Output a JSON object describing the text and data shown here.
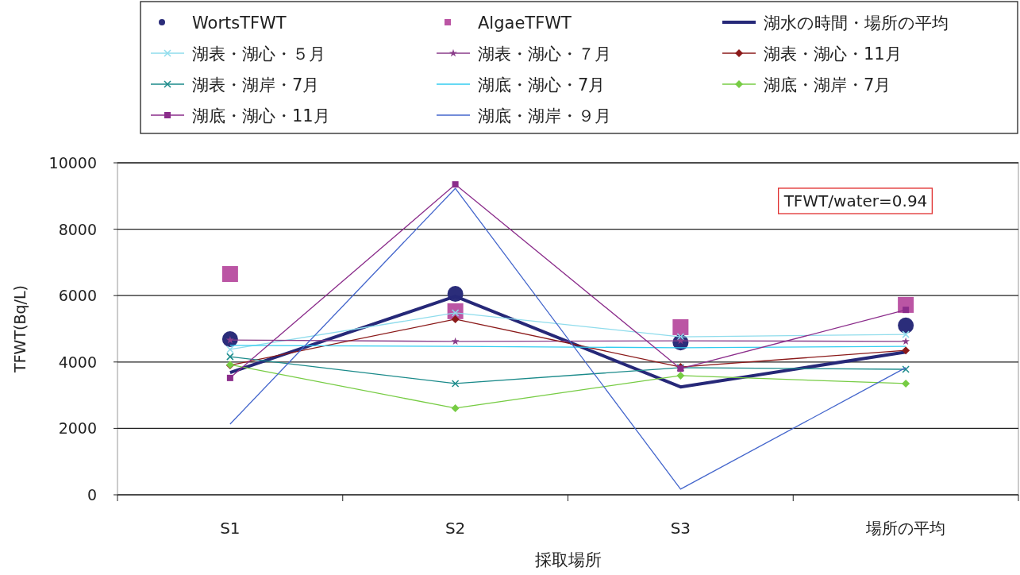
{
  "chart_data": {
    "type": "line",
    "xlabel": "採取場所",
    "ylabel": "TFWT(Bq/L)",
    "categories": [
      "S1",
      "S2",
      "S3",
      "場所の平均"
    ],
    "ylim": [
      0,
      10000
    ],
    "yticks": [
      0,
      2000,
      4000,
      6000,
      8000,
      10000
    ],
    "grid": "y",
    "legend": "top",
    "annotations": [
      "TFWT/water=0.94"
    ],
    "series": [
      {
        "name": "WortsTFWT",
        "type": "scatter",
        "marker": "circle",
        "color": "#2b2d7a",
        "values": [
          4690,
          6050,
          4590,
          5100
        ]
      },
      {
        "name": "AlgaeTFWT",
        "type": "scatter",
        "marker": "square",
        "color": "#bb55a4",
        "values": [
          6650,
          5530,
          5050,
          5720
        ]
      },
      {
        "name": "湖水の時間・場所の平均",
        "marker": "none",
        "color": "#262878",
        "values": [
          3680,
          5980,
          3250,
          4300
        ]
      },
      {
        "name": "湖表・湖心・５月",
        "marker": "cross",
        "color": "#8fdcec",
        "values": [
          4380,
          5480,
          4760,
          4830
        ]
      },
      {
        "name": "湖表・湖心・７月",
        "marker": "star",
        "color": "#8a3d8a",
        "values": [
          4660,
          4620,
          4640,
          4620
        ]
      },
      {
        "name": "湖表・湖心・11月",
        "marker": "diamond",
        "color": "#8b1a1a",
        "values": [
          3900,
          5290,
          3850,
          4350
        ]
      },
      {
        "name": "湖表・湖岸・7月",
        "marker": "cross",
        "color": "#1a8a8a",
        "values": [
          4160,
          3350,
          3830,
          3780
        ]
      },
      {
        "name": "湖底・湖心・7月",
        "marker": "none",
        "color": "#33ccf0",
        "values": [
          4500,
          4470,
          4430,
          4470
        ]
      },
      {
        "name": "湖底・湖岸・7月",
        "marker": "diamond",
        "color": "#77cc44",
        "values": [
          3920,
          2610,
          3590,
          3350
        ]
      },
      {
        "name": "湖底・湖心・11月",
        "marker": "square",
        "color": "#8b2d8b",
        "values": [
          3520,
          9350,
          3800,
          5570
        ]
      },
      {
        "name": "湖底・湖岸・９月",
        "marker": "none",
        "color": "#4466cc",
        "values": [
          2130,
          9230,
          170,
          3830
        ]
      }
    ]
  }
}
